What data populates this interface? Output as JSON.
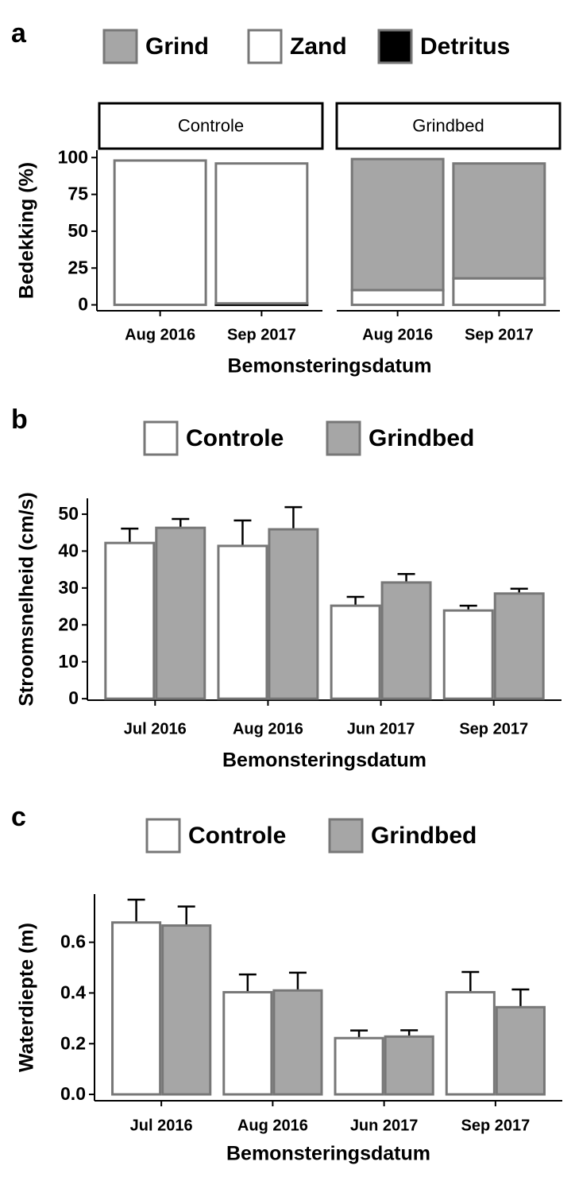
{
  "chart_data": [
    {
      "type": "stacked_bar",
      "panel_label": "a",
      "xlabel": "Bemonsteringsdatum",
      "ylabel": "Bedekking (%)",
      "facets": [
        "Controle",
        "Grindbed"
      ],
      "categories": [
        "Aug 2016",
        "Sep 2017"
      ],
      "series": [
        {
          "name": "Grind",
          "color": "#a6a6a6",
          "values": [
            [
              0,
              0
            ],
            [
              89,
              78
            ]
          ]
        },
        {
          "name": "Zand",
          "color": "#ffffff",
          "values": [
            [
              98,
              95
            ],
            [
              10,
              18
            ]
          ]
        },
        {
          "name": "Detritus",
          "color": "#000000",
          "values": [
            [
              0,
              1
            ],
            [
              0,
              0
            ]
          ]
        }
      ],
      "ylim": [
        -4,
        105
      ],
      "yticks": [
        0,
        25,
        50,
        75,
        100
      ]
    },
    {
      "type": "bar",
      "panel_label": "b",
      "xlabel": "Bemonsteringsdatum",
      "ylabel": "Stroomsnelheid (cm/s)",
      "categories": [
        "Jul 2016",
        "Aug 2016",
        "Jun 2017",
        "Sep 2017"
      ],
      "series": [
        {
          "name": "Controle",
          "color": "#ffffff",
          "values": [
            42.2,
            41.4,
            25.2,
            23.9
          ],
          "errors": [
            3.9,
            6.9,
            2.4,
            1.3
          ]
        },
        {
          "name": "Grindbed",
          "color": "#a6a6a6",
          "values": [
            46.3,
            45.9,
            31.5,
            28.5
          ],
          "errors": [
            2.4,
            6,
            2.3,
            1.3
          ]
        }
      ],
      "ylim": [
        -0.4,
        54.3
      ],
      "yticks": [
        0,
        10,
        20,
        30,
        40,
        50
      ]
    },
    {
      "type": "bar",
      "panel_label": "c",
      "xlabel": "Bemonsteringsdatum",
      "ylabel": "Waterdiepte (m)",
      "categories": [
        "Jul 2016",
        "Aug 2016",
        "Jun 2017",
        "Sep 2017"
      ],
      "series": [
        {
          "name": "Controle",
          "color": "#ffffff",
          "values": [
            0.678,
            0.403,
            0.222,
            0.403
          ],
          "errors": [
            0.09,
            0.07,
            0.03,
            0.08
          ]
        },
        {
          "name": "Grindbed",
          "color": "#a6a6a6",
          "values": [
            0.666,
            0.41,
            0.228,
            0.344
          ],
          "errors": [
            0.075,
            0.07,
            0.025,
            0.07
          ]
        }
      ],
      "ylim": [
        -0.025,
        0.79
      ],
      "yticks": [
        {
          "value": 0,
          "label": "0.0"
        },
        0.2,
        0.4,
        0.6
      ]
    }
  ]
}
